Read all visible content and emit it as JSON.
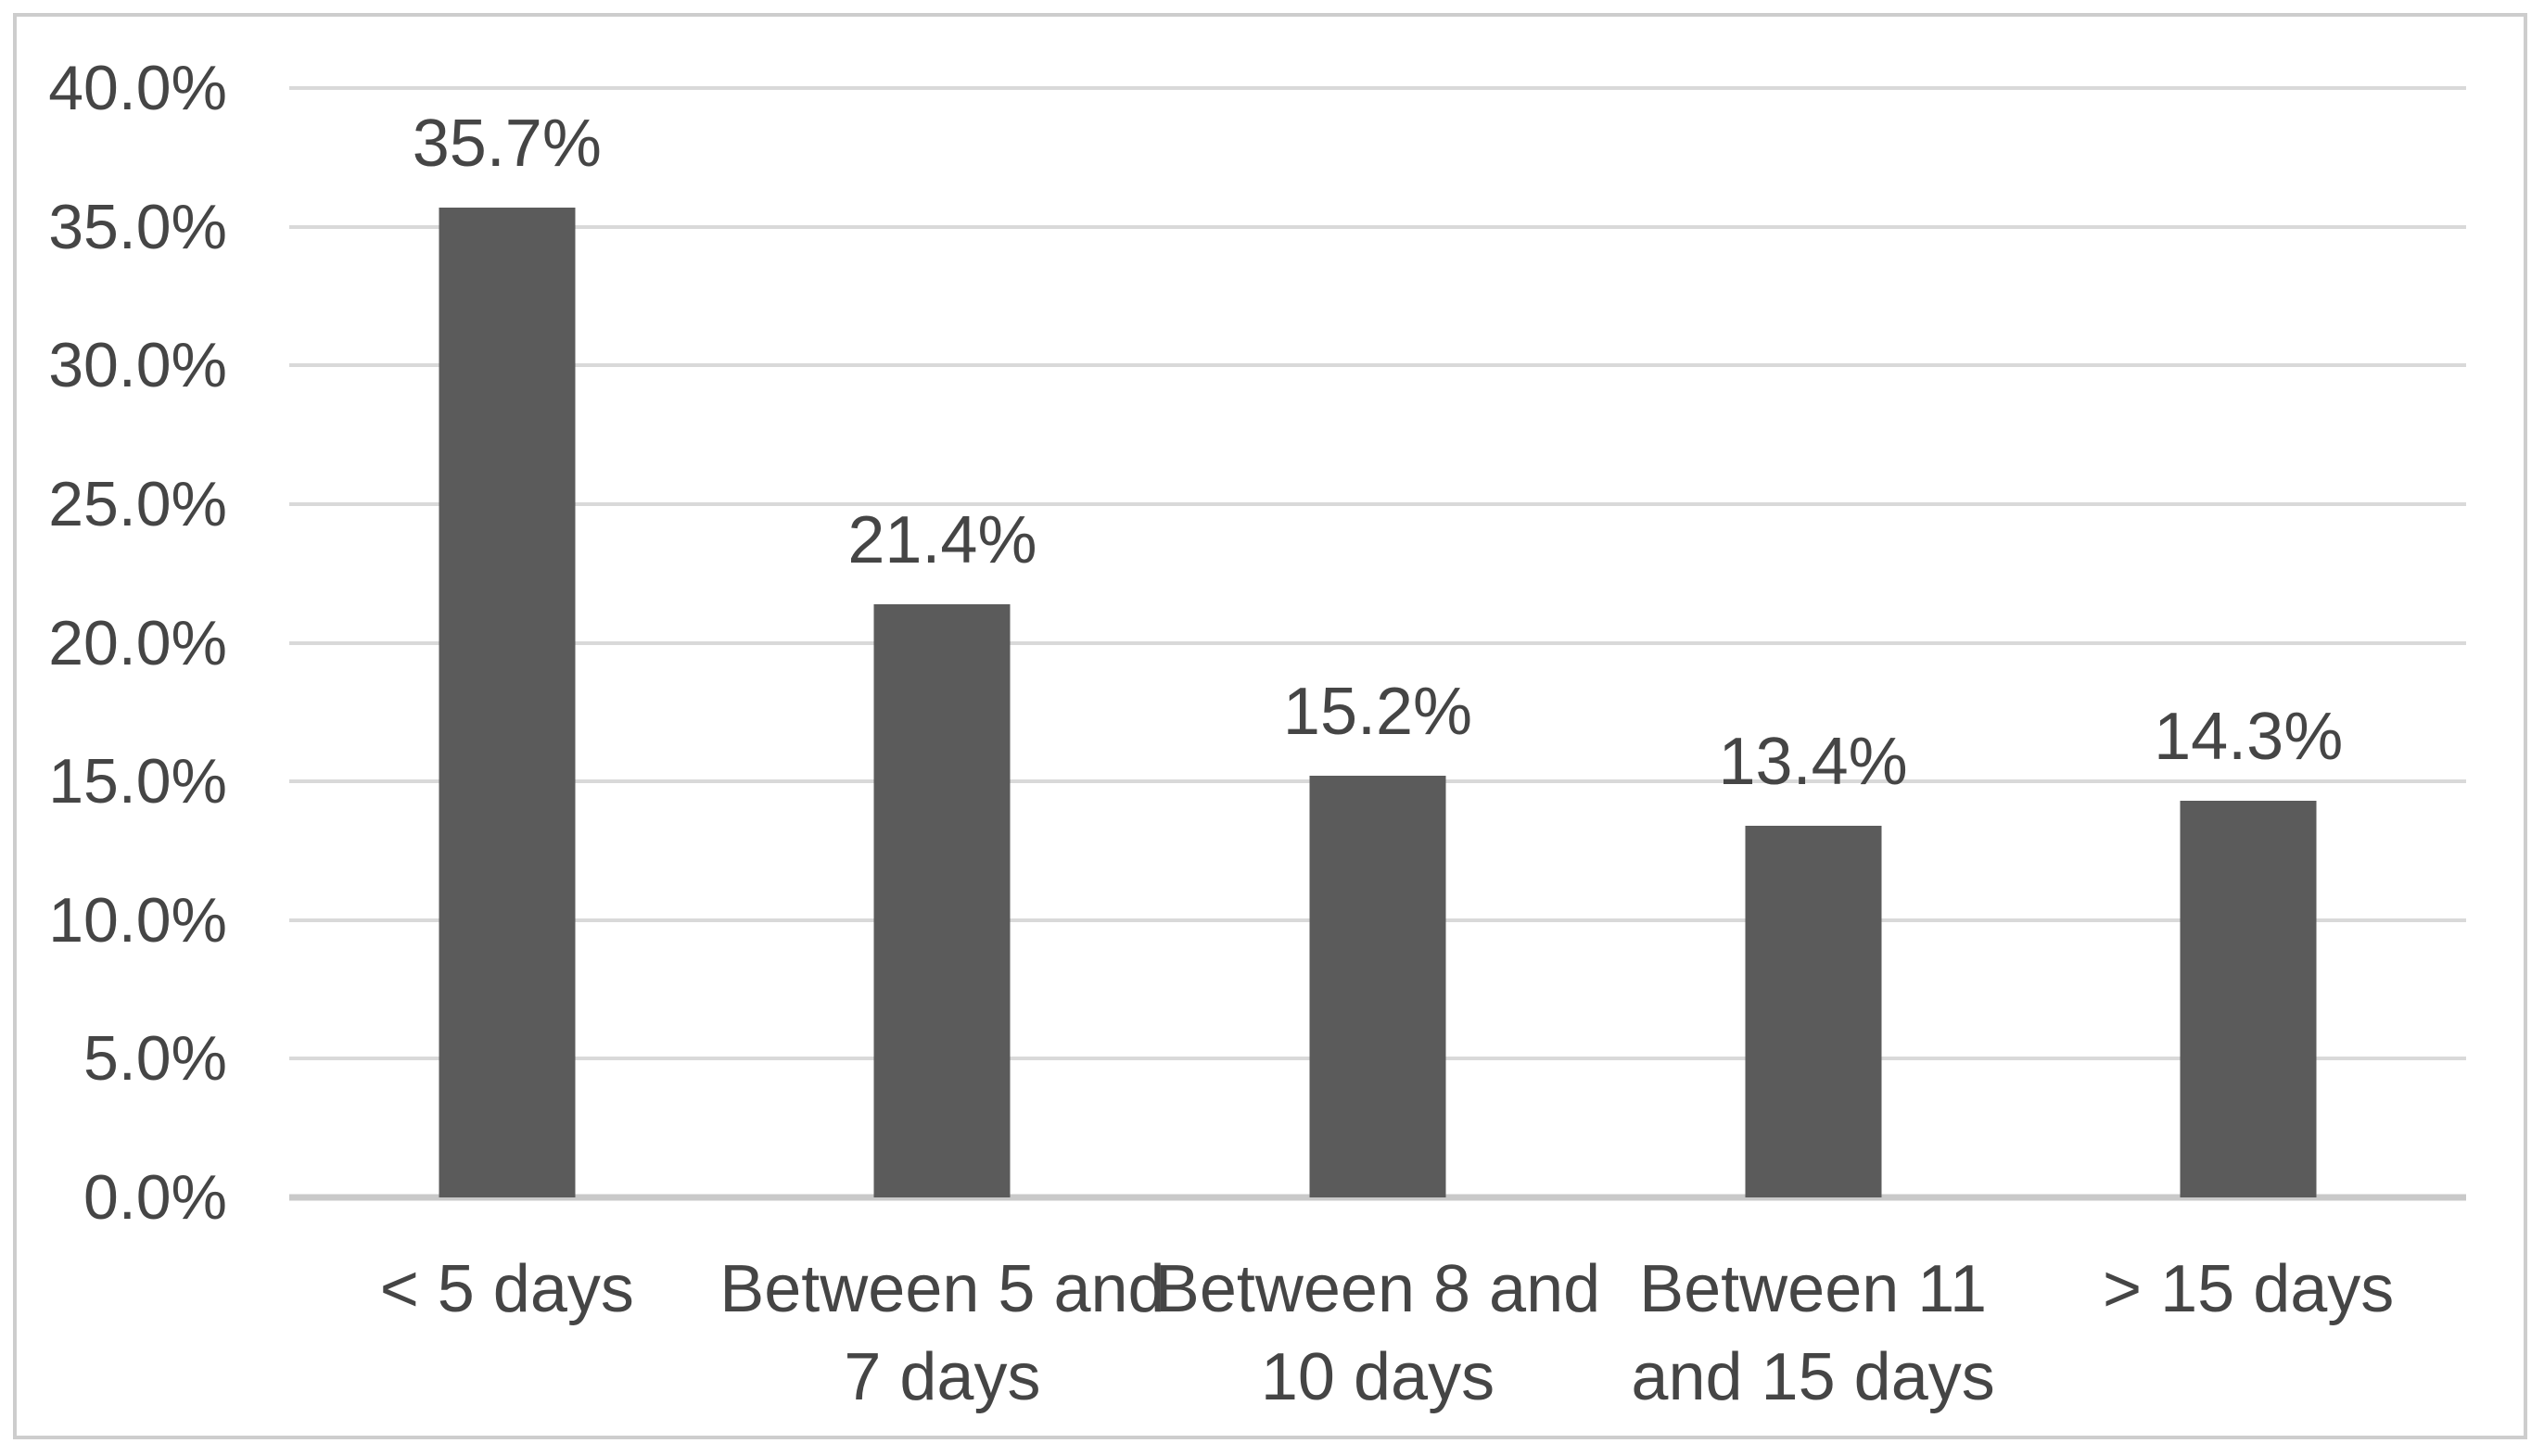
{
  "chart_data": {
    "type": "bar",
    "title": "",
    "xlabel": "",
    "ylabel": "",
    "categories": [
      "< 5 days",
      "Between 5 and 7 days",
      "Between 8 and 10 days",
      "Between 11 and 15 days",
      "> 15 days"
    ],
    "categories_display": [
      "< 5 days",
      "Between 5 and\n7 days",
      "Between 8 and\n10 days",
      "Between 11\nand 15 days",
      "> 15 days"
    ],
    "values": [
      35.7,
      21.4,
      15.2,
      13.4,
      14.3
    ],
    "data_labels": [
      "35.7%",
      "21.4%",
      "15.2%",
      "13.4%",
      "14.3%"
    ],
    "ylim": [
      0,
      40
    ],
    "ytick_step": 5,
    "yticks": [
      {
        "value": 40,
        "label": "40.0%"
      },
      {
        "value": 35,
        "label": "35.0%"
      },
      {
        "value": 30,
        "label": "30.0%"
      },
      {
        "value": 25,
        "label": "25.0%"
      },
      {
        "value": 20,
        "label": "20.0%"
      },
      {
        "value": 15,
        "label": "15.0%"
      },
      {
        "value": 10,
        "label": "10.0%"
      },
      {
        "value": 5,
        "label": "5.0%"
      },
      {
        "value": 0,
        "label": "0.0%"
      }
    ],
    "grid": true,
    "legend": "none",
    "colors": {
      "bar": "#5b5b5b",
      "gridline": "#d9d9d9",
      "baseline": "#c9c9c9",
      "text": "#454545",
      "frame_border": "#cdcdcd",
      "background": "#ffffff"
    }
  }
}
